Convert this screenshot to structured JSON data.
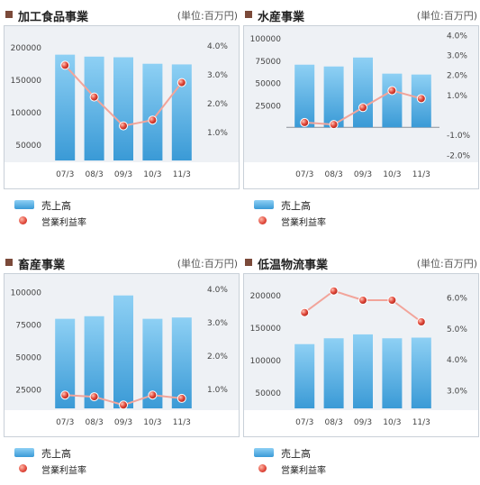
{
  "legend": {
    "sales": "売上高",
    "margin": "営業利益率"
  },
  "colors": {
    "bar_top": "#8ed0f4",
    "bar_bottom": "#3a9ad6",
    "line": "#f2a49a",
    "dot": "#e0473a",
    "frame_bg": "#eef1f5"
  },
  "chart_data": [
    {
      "type": "bar+line",
      "title": "加工食品事業",
      "unit_label": "(単位:百万円)",
      "categories": [
        "07/3",
        "08/3",
        "09/3",
        "10/3",
        "11/3"
      ],
      "series": [
        {
          "name": "売上高",
          "axis": "left",
          "values": [
            188000,
            185000,
            184000,
            174000,
            173000
          ]
        },
        {
          "name": "営業利益率",
          "axis": "right",
          "values": [
            3.3,
            2.2,
            1.2,
            1.4,
            2.7
          ]
        }
      ],
      "y_left": {
        "min": 25000,
        "max": 225000,
        "ticks": [
          50000,
          100000,
          150000,
          200000
        ]
      },
      "y_right": {
        "min": 0.0,
        "max": 4.5,
        "ticks": [
          1.0,
          2.0,
          3.0,
          4.0
        ],
        "tick_labels": [
          "1.0%",
          "2.0%",
          "3.0%",
          "4.0%"
        ]
      }
    },
    {
      "type": "bar+line",
      "title": "水産事業",
      "unit_label": "(単位:百万円)",
      "categories": [
        "07/3",
        "08/3",
        "09/3",
        "10/3",
        "11/3"
      ],
      "series": [
        {
          "name": "売上高",
          "axis": "left",
          "values": [
            70000,
            68000,
            78000,
            60000,
            59000
          ]
        },
        {
          "name": "営業利益率",
          "axis": "right",
          "values": [
            -0.4,
            -0.5,
            0.35,
            1.2,
            0.8
          ]
        }
      ],
      "y_left": {
        "min": -37000,
        "max": 108000,
        "ticks": [
          25000,
          50000,
          75000,
          100000
        ]
      },
      "y_right": {
        "min": -2.3,
        "max": 4.2,
        "ticks": [
          -2.0,
          -1.0,
          1.0,
          2.0,
          3.0,
          4.0
        ],
        "tick_labels": [
          "-2.0%",
          "-1.0%",
          "1.0%",
          "2.0%",
          "3.0%",
          "4.0%"
        ]
      }
    },
    {
      "type": "bar+line",
      "title": "畜産事業",
      "unit_label": "(単位:百万円)",
      "categories": [
        "07/3",
        "08/3",
        "09/3",
        "10/3",
        "11/3"
      ],
      "series": [
        {
          "name": "売上高",
          "axis": "left",
          "values": [
            79000,
            81000,
            97000,
            79000,
            80000
          ]
        },
        {
          "name": "営業利益率",
          "axis": "right",
          "values": [
            0.8,
            0.75,
            0.5,
            0.8,
            0.7
          ]
        }
      ],
      "y_left": {
        "min": 10000,
        "max": 110000,
        "ticks": [
          25000,
          50000,
          75000,
          100000
        ]
      },
      "y_right": {
        "min": 0.4,
        "max": 4.3,
        "ticks": [
          1.0,
          2.0,
          3.0,
          4.0
        ],
        "tick_labels": [
          "1.0%",
          "2.0%",
          "3.0%",
          "4.0%"
        ]
      }
    },
    {
      "type": "bar+line",
      "title": "低温物流事業",
      "unit_label": "(単位:百万円)",
      "categories": [
        "07/3",
        "08/3",
        "09/3",
        "10/3",
        "11/3"
      ],
      "series": [
        {
          "name": "売上高",
          "axis": "left",
          "values": [
            124000,
            133000,
            139000,
            133000,
            134000
          ]
        },
        {
          "name": "営業利益率",
          "axis": "right",
          "values": [
            5.5,
            6.2,
            5.9,
            5.9,
            5.2
          ]
        }
      ],
      "y_left": {
        "min": 25000,
        "max": 225000,
        "ticks": [
          50000,
          100000,
          150000,
          200000
        ]
      },
      "y_right": {
        "min": 2.4,
        "max": 6.6,
        "ticks": [
          3.0,
          4.0,
          5.0,
          6.0
        ],
        "tick_labels": [
          "3.0%",
          "4.0%",
          "5.0%",
          "6.0%"
        ]
      }
    }
  ]
}
